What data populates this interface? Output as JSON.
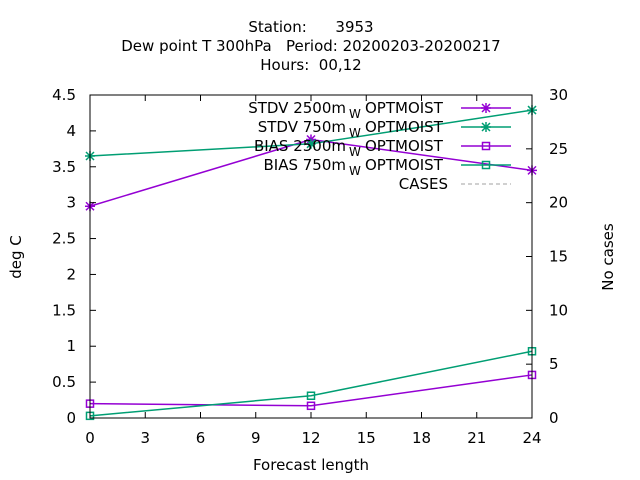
{
  "chart_data": {
    "type": "line",
    "title_lines": [
      "Station:      3953",
      "Dew point T 300hPa   Period: 20200203-20200217",
      "Hours:  00,12"
    ],
    "xlabel": "Forecast length",
    "ylabel": "deg C",
    "y2label": "No cases",
    "xlim": [
      0,
      24
    ],
    "ylim": [
      0,
      4.5
    ],
    "y2lim": [
      0,
      30
    ],
    "xticks": [
      0,
      3,
      6,
      9,
      12,
      15,
      18,
      21,
      24
    ],
    "yticks": [
      0,
      0.5,
      1,
      1.5,
      2,
      2.5,
      3,
      3.5,
      4,
      4.5
    ],
    "y2ticks": [
      0,
      5,
      10,
      15,
      20,
      25,
      30
    ],
    "legend_position": "top-right",
    "series": [
      {
        "name": "STDV 2500m",
        "name_subscript": "W",
        "name_suffix": "OPTMOIST",
        "color": "#9400d3",
        "marker": "cross",
        "axis": "y",
        "x": [
          0,
          12,
          24
        ],
        "values": [
          2.95,
          3.88,
          3.45
        ]
      },
      {
        "name": "STDV 750m",
        "name_subscript": "W",
        "name_suffix": "OPTMOIST",
        "color": "#009e73",
        "marker": "cross",
        "axis": "y",
        "x": [
          0,
          12,
          24
        ],
        "values": [
          3.65,
          3.82,
          4.29
        ]
      },
      {
        "name": "BIAS 2500m",
        "name_subscript": "W",
        "name_suffix": "OPTMOIST",
        "color": "#9400d3",
        "marker": "square",
        "axis": "y",
        "x": [
          0,
          12,
          24
        ],
        "values": [
          0.2,
          0.17,
          0.6
        ]
      },
      {
        "name": "BIAS 750m",
        "name_subscript": "W",
        "name_suffix": "OPTMOIST",
        "color": "#009e73",
        "marker": "square",
        "axis": "y",
        "x": [
          0,
          12,
          24
        ],
        "values": [
          0.03,
          0.31,
          0.93
        ]
      },
      {
        "name": "CASES",
        "name_subscript": "",
        "name_suffix": "",
        "color": "#a0a0a0",
        "marker": "none",
        "dashed": true,
        "axis": "y2",
        "x": [
          0,
          12,
          24
        ],
        "values": [
          30,
          30,
          30
        ]
      }
    ]
  }
}
